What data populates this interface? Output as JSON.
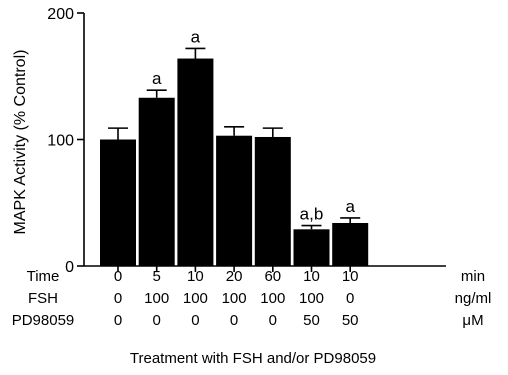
{
  "chart_data": {
    "type": "bar",
    "ylabel": "MAPK Activity (% Control)",
    "xlabel": "Treatment with FSH and/or PD98059",
    "ylim": [
      0,
      200
    ],
    "yticks": [
      "0",
      "100",
      "200"
    ],
    "grid": false,
    "values": [
      100,
      133,
      164,
      103,
      102,
      29,
      34
    ],
    "errors": [
      9,
      6,
      8,
      7,
      7,
      3,
      4
    ],
    "annotations": [
      "",
      "a",
      "a",
      "",
      "",
      "a,b",
      "a"
    ],
    "bar_color": "#000000",
    "treatment_rows": [
      {
        "label": "Time",
        "values": [
          "0",
          "5",
          "10",
          "20",
          "60",
          "10",
          "10"
        ],
        "unit": "min"
      },
      {
        "label": "FSH",
        "values": [
          "0",
          "100",
          "100",
          "100",
          "100",
          "100",
          "0"
        ],
        "unit": "ng/ml"
      },
      {
        "label": "PD98059",
        "values": [
          "0",
          "0",
          "0",
          "0",
          "0",
          "50",
          "50"
        ],
        "unit": "μM"
      }
    ]
  }
}
